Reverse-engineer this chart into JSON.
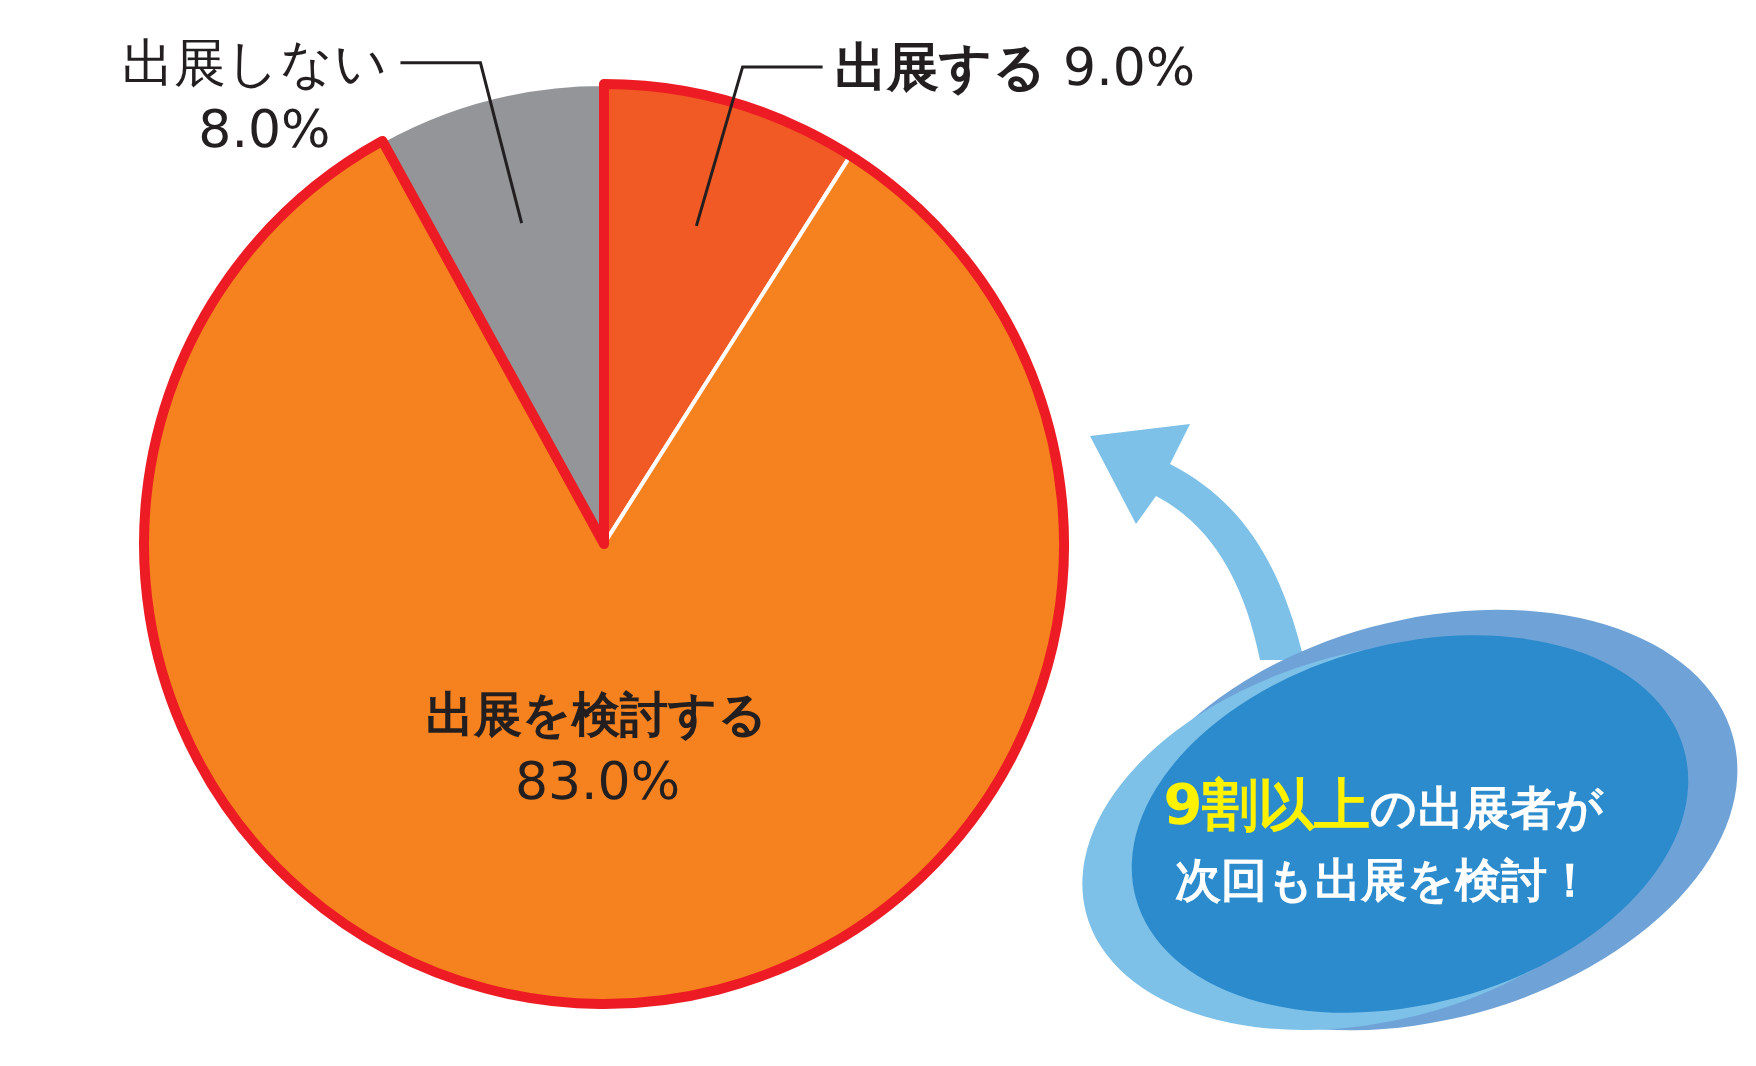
{
  "chart_data": {
    "type": "pie",
    "categories": [
      "出展する",
      "出展を検討する",
      "出展しない"
    ],
    "values": [
      9.0,
      83.0,
      8.0
    ],
    "colors": [
      "#f15a24",
      "#f5821f",
      "#939598"
    ],
    "value_labels": [
      "9.0%",
      "83.0%",
      "8.0%"
    ],
    "annotations": [
      "9割以上の出展者が",
      "次回も出展を検討！"
    ]
  }
}
